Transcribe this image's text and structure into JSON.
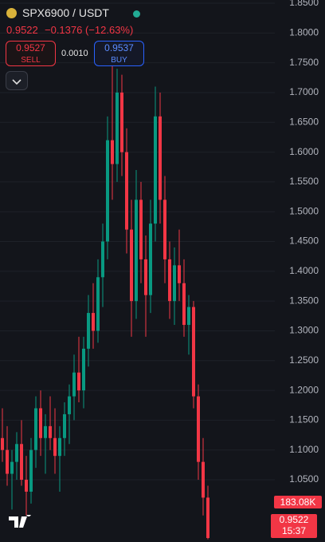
{
  "header": {
    "symbol": "SPX6900 / USDT",
    "price": "0.9522",
    "change": "−0.1376 (−12.63%)",
    "sell_price": "0.9527",
    "sell_label": "SELL",
    "spread": "0.0010",
    "buy_price": "0.9537",
    "buy_label": "BUY"
  },
  "chart_data": {
    "type": "candlestick",
    "up_color": "#089981",
    "down_color": "#f23645",
    "ylim": [
      0.9455,
      1.8554
    ],
    "yticks": [
      {
        "value": 1.05,
        "label": "1.0500"
      },
      {
        "value": 1.1,
        "label": "1.1000"
      },
      {
        "value": 1.15,
        "label": "1.1500"
      },
      {
        "value": 1.2,
        "label": "1.2000"
      },
      {
        "value": 1.25,
        "label": "1.2500"
      },
      {
        "value": 1.3,
        "label": "1.3000"
      },
      {
        "value": 1.35,
        "label": "1.3500"
      },
      {
        "value": 1.4,
        "label": "1.4000"
      },
      {
        "value": 1.45,
        "label": "1.4500"
      },
      {
        "value": 1.5,
        "label": "1.5000"
      },
      {
        "value": 1.55,
        "label": "1.5500"
      },
      {
        "value": 1.6,
        "label": "1.6000"
      },
      {
        "value": 1.65,
        "label": "1.6500"
      },
      {
        "value": 1.7,
        "label": "1.7000"
      },
      {
        "value": 1.75,
        "label": "1.7500"
      },
      {
        "value": 1.8,
        "label": "1.8000"
      },
      {
        "value": 1.85,
        "label": "1.8500"
      }
    ],
    "grid": true,
    "ohlc": [
      [
        1.12,
        1.17,
        1.08,
        1.1
      ],
      [
        1.1,
        1.14,
        1.04,
        1.06
      ],
      [
        1.06,
        1.1,
        1.0,
        1.08
      ],
      [
        1.08,
        1.13,
        1.05,
        1.11
      ],
      [
        1.11,
        1.15,
        1.04,
        1.05
      ],
      [
        1.05,
        1.09,
        0.99,
        1.03
      ],
      [
        1.03,
        1.12,
        1.01,
        1.1
      ],
      [
        1.1,
        1.19,
        1.07,
        1.17
      ],
      [
        1.17,
        1.2,
        1.09,
        1.12
      ],
      [
        1.12,
        1.16,
        1.06,
        1.14
      ],
      [
        1.14,
        1.19,
        1.1,
        1.12
      ],
      [
        1.12,
        1.17,
        1.06,
        1.09
      ],
      [
        1.09,
        1.14,
        1.03,
        1.12
      ],
      [
        1.12,
        1.18,
        1.09,
        1.16
      ],
      [
        1.16,
        1.21,
        1.11,
        1.19
      ],
      [
        1.19,
        1.26,
        1.15,
        1.23
      ],
      [
        1.23,
        1.29,
        1.18,
        1.2
      ],
      [
        1.2,
        1.29,
        1.17,
        1.27
      ],
      [
        1.27,
        1.36,
        1.24,
        1.33
      ],
      [
        1.33,
        1.38,
        1.27,
        1.3
      ],
      [
        1.3,
        1.42,
        1.28,
        1.39
      ],
      [
        1.39,
        1.48,
        1.34,
        1.45
      ],
      [
        1.45,
        1.66,
        1.42,
        1.62
      ],
      [
        1.62,
        1.76,
        1.52,
        1.58
      ],
      [
        1.58,
        1.74,
        1.55,
        1.7
      ],
      [
        1.7,
        1.73,
        1.56,
        1.6
      ],
      [
        1.6,
        1.64,
        1.43,
        1.47
      ],
      [
        1.47,
        1.52,
        1.29,
        1.35
      ],
      [
        1.35,
        1.57,
        1.32,
        1.52
      ],
      [
        1.52,
        1.55,
        1.38,
        1.42
      ],
      [
        1.42,
        1.46,
        1.29,
        1.36
      ],
      [
        1.36,
        1.52,
        1.33,
        1.48
      ],
      [
        1.48,
        1.71,
        1.45,
        1.66
      ],
      [
        1.66,
        1.7,
        1.48,
        1.52
      ],
      [
        1.52,
        1.56,
        1.38,
        1.42
      ],
      [
        1.42,
        1.45,
        1.32,
        1.35
      ],
      [
        1.35,
        1.44,
        1.31,
        1.41
      ],
      [
        1.41,
        1.47,
        1.35,
        1.38
      ],
      [
        1.38,
        1.42,
        1.29,
        1.31
      ],
      [
        1.31,
        1.36,
        1.26,
        1.34
      ],
      [
        1.34,
        1.35,
        1.17,
        1.19
      ],
      [
        1.19,
        1.21,
        1.05,
        1.08
      ],
      [
        1.08,
        1.12,
        0.99,
        1.02
      ],
      [
        1.02,
        1.04,
        0.95,
        0.9522
      ]
    ],
    "volume_label": "183.08K",
    "last_price_label": "0.9522",
    "countdown": "15:37"
  }
}
